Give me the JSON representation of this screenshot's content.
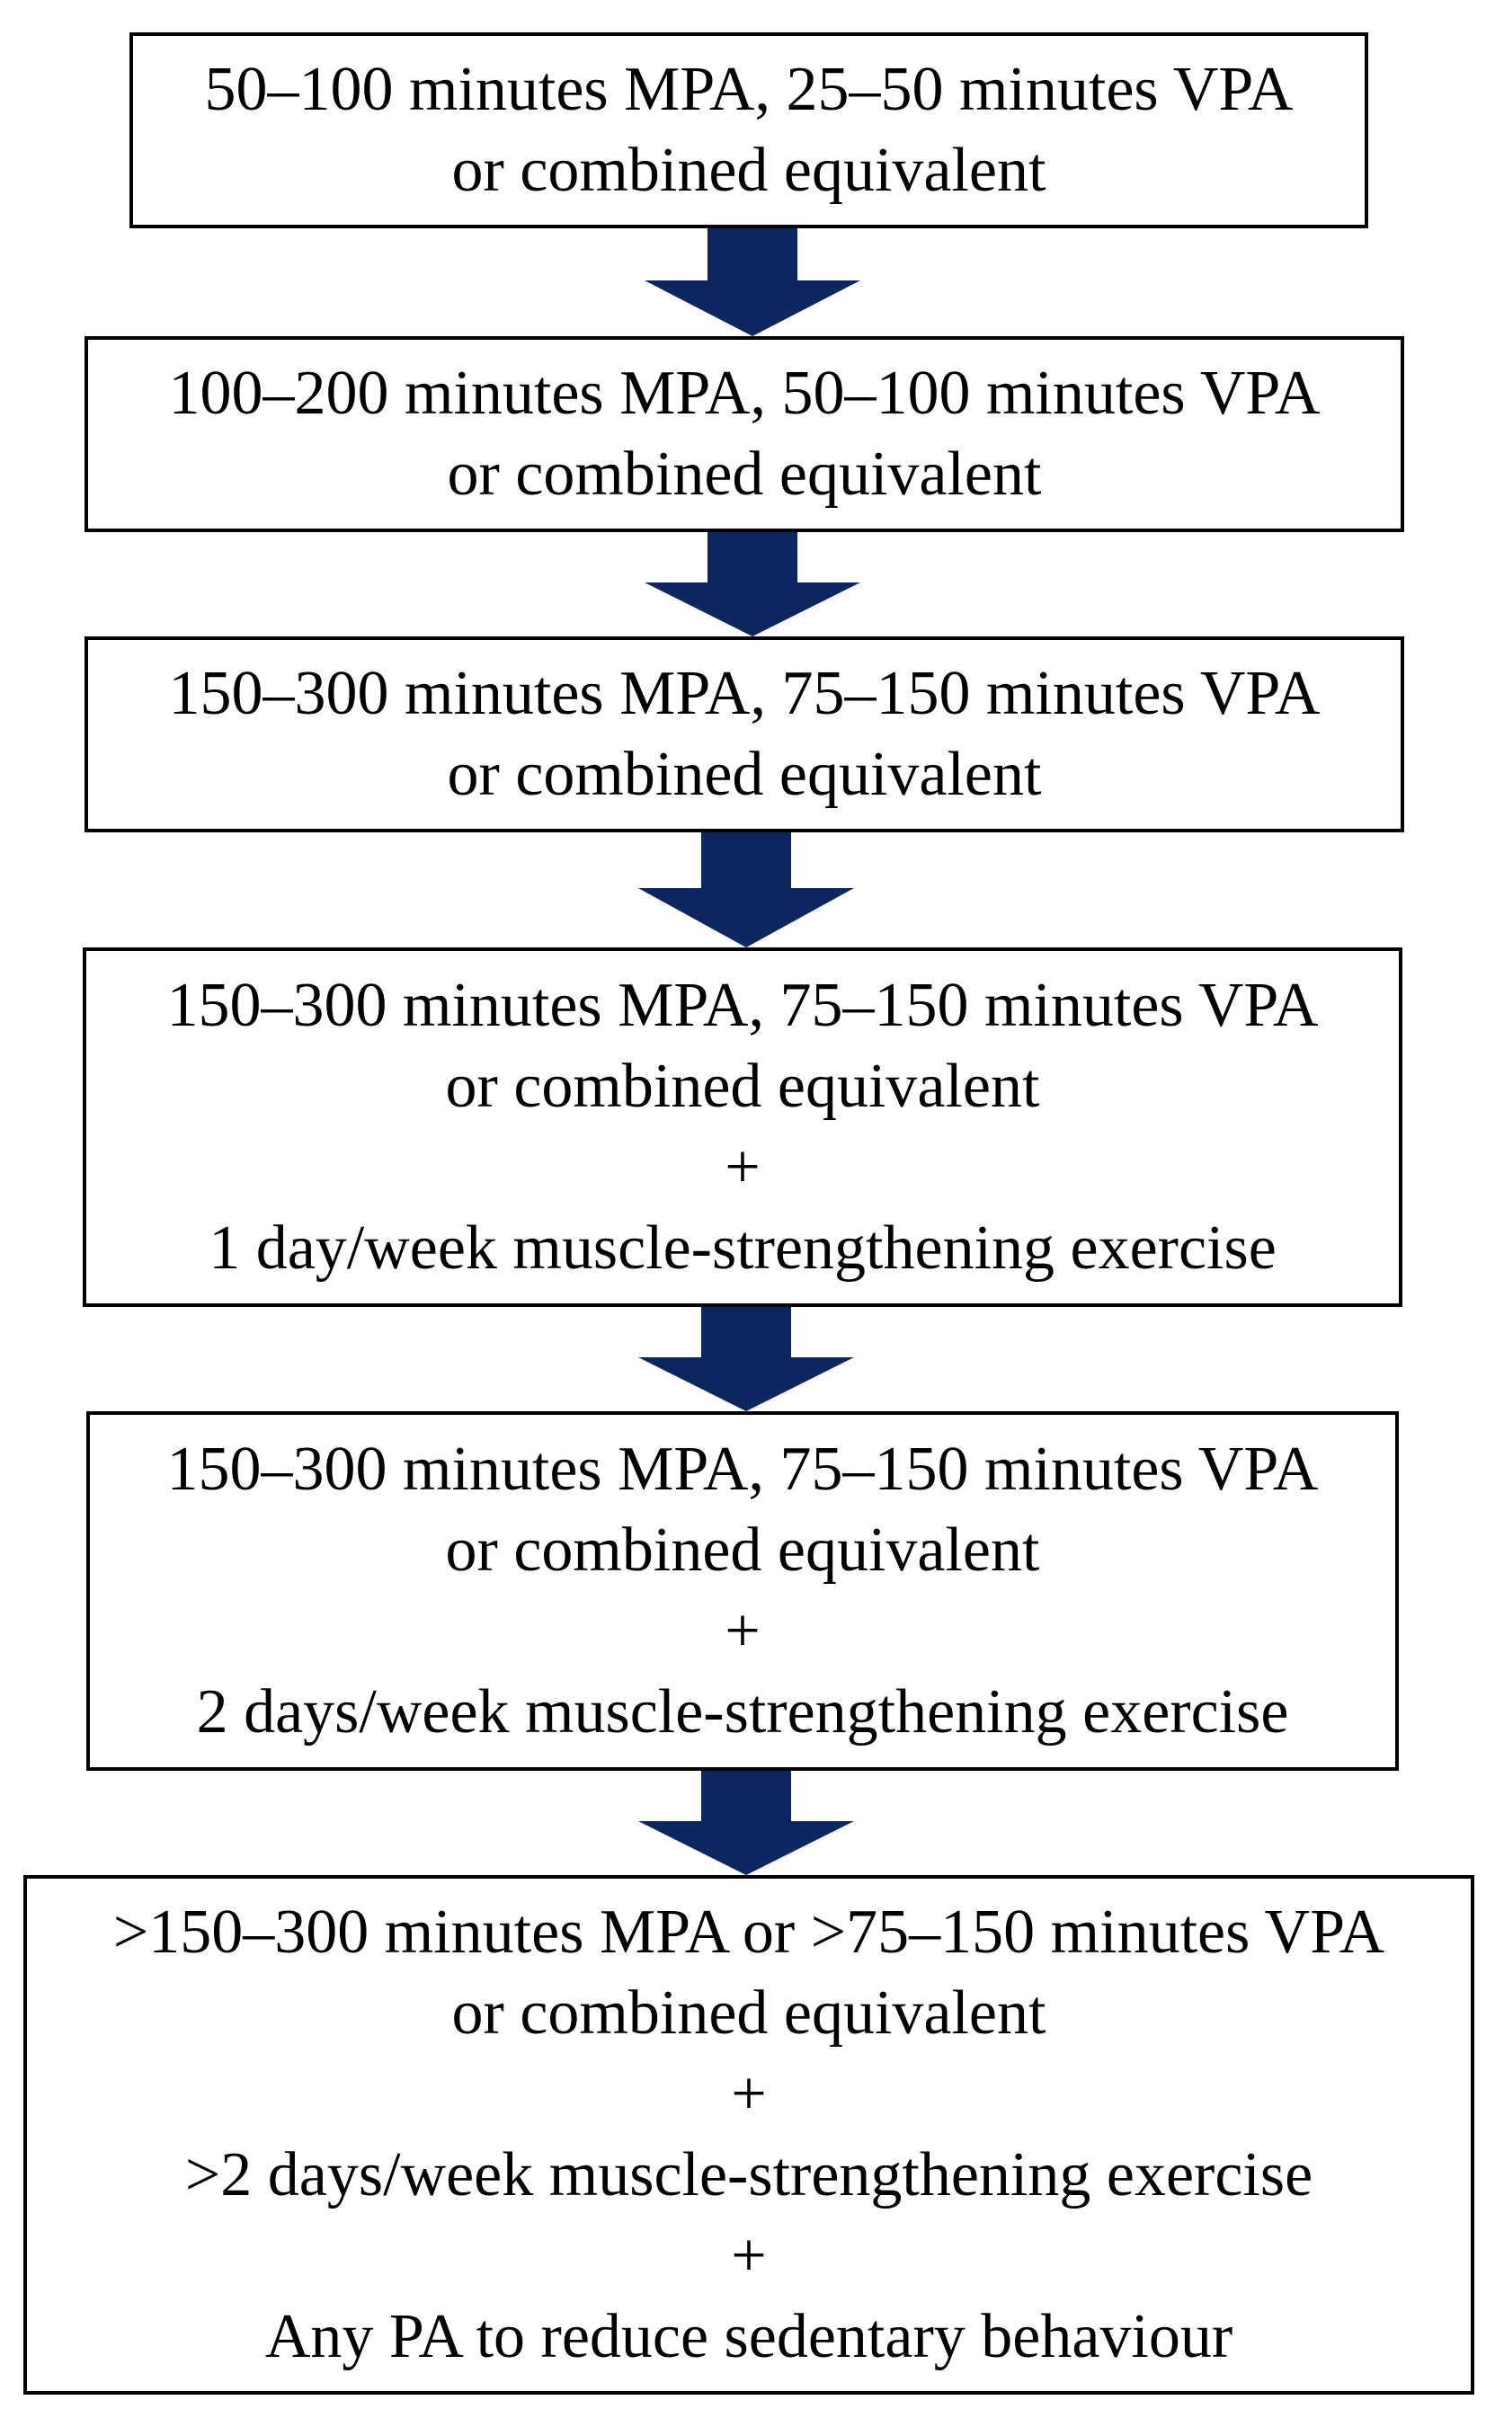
{
  "diagram": {
    "arrow_color": "#0c2660",
    "boxes": [
      {
        "lines": [
          "50–100 minutes MPA, 25–50 minutes VPA",
          "or combined equivalent"
        ]
      },
      {
        "lines": [
          "100–200 minutes MPA, 50–100 minutes VPA",
          "or combined equivalent"
        ]
      },
      {
        "lines": [
          "150–300 minutes MPA, 75–150 minutes VPA",
          "or combined equivalent"
        ]
      },
      {
        "lines": [
          "150–300 minutes MPA, 75–150 minutes VPA",
          "or combined equivalent",
          "+",
          "1 day/week muscle-strengthening exercise"
        ]
      },
      {
        "lines": [
          "150–300 minutes MPA, 75–150 minutes VPA",
          "or combined equivalent",
          "+",
          "2 days/week muscle-strengthening exercise"
        ]
      },
      {
        "lines": [
          ">150–300 minutes MPA or >75–150 minutes VPA",
          "or combined equivalent",
          "+",
          ">2 days/week muscle-strengthening exercise",
          "+",
          "Any PA to reduce sedentary behaviour"
        ]
      }
    ]
  }
}
